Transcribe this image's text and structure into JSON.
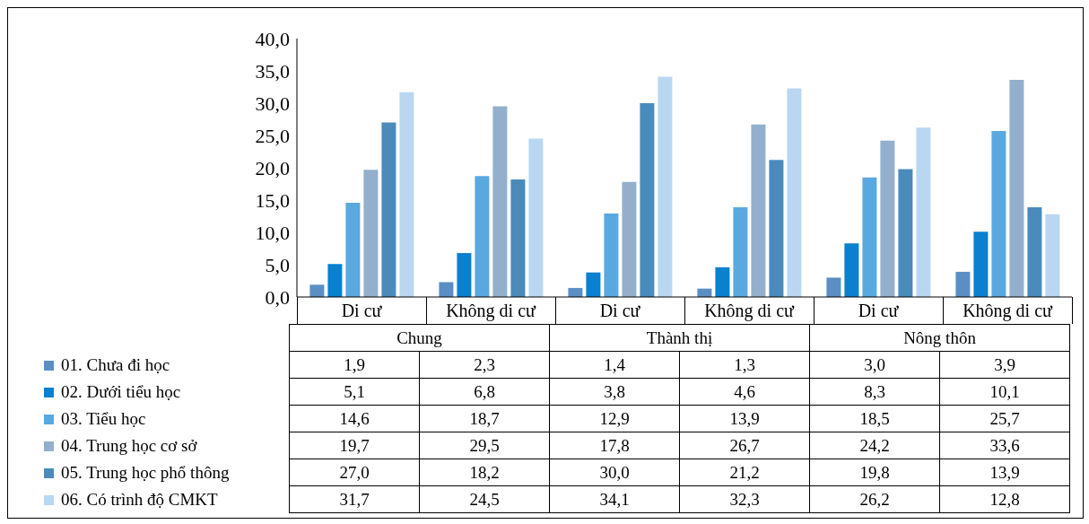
{
  "chart_data": {
    "type": "bar",
    "categories": [
      "Di cư",
      "Không di cư",
      "Di cư",
      "Không di cư",
      "Di cư",
      "Không di cư"
    ],
    "annotations": [
      "Chung",
      "Thành thị",
      "Nông thôn"
    ],
    "series": [
      {
        "name": "01. Chưa đi học",
        "color": "#5b8fc3",
        "values": [
          1.9,
          2.3,
          1.4,
          1.3,
          3.0,
          3.9
        ],
        "value_labels": [
          "1,9",
          "2,3",
          "1,4",
          "1,3",
          "3,0",
          "3,9"
        ]
      },
      {
        "name": "02. Dưới tiểu học",
        "color": "#0a80cf",
        "values": [
          5.1,
          6.8,
          3.8,
          4.6,
          8.3,
          10.1
        ],
        "value_labels": [
          "5,1",
          "6,8",
          "3,8",
          "4,6",
          "8,3",
          "10,1"
        ]
      },
      {
        "name": "03. Tiểu học",
        "color": "#5aa8e0",
        "values": [
          14.6,
          18.7,
          12.9,
          13.9,
          18.5,
          25.7
        ],
        "value_labels": [
          "14,6",
          "18,7",
          "12,9",
          "13,9",
          "18,5",
          "25,7"
        ]
      },
      {
        "name": "04. Trung học cơ sở",
        "color": "#93afcb",
        "values": [
          19.7,
          29.5,
          17.8,
          26.7,
          24.2,
          33.6
        ],
        "value_labels": [
          "19,7",
          "29,5",
          "17,8",
          "26,7",
          "24,2",
          "33,6"
        ]
      },
      {
        "name": "05. Trung học phổ thông",
        "color": "#4a8bbc",
        "values": [
          27.0,
          18.2,
          30.0,
          21.2,
          19.8,
          13.9
        ],
        "value_labels": [
          "27,0",
          "18,2",
          "30,0",
          "21,2",
          "19,8",
          "13,9"
        ]
      },
      {
        "name": "06. Có trình độ CMKT",
        "color": "#bad7f1",
        "values": [
          31.7,
          24.5,
          34.1,
          32.3,
          26.2,
          12.8
        ],
        "value_labels": [
          "31,7",
          "24,5",
          "34,1",
          "32,3",
          "26,2",
          "12,8"
        ]
      }
    ],
    "ylim": [
      0,
      40
    ],
    "yticks": [
      {
        "value": 0,
        "label": "0,0"
      },
      {
        "value": 5,
        "label": "5,0"
      },
      {
        "value": 10,
        "label": "10,0"
      },
      {
        "value": 15,
        "label": "15,0"
      },
      {
        "value": 20,
        "label": "20,0"
      },
      {
        "value": 25,
        "label": "25,0"
      },
      {
        "value": 30,
        "label": "30,0"
      },
      {
        "value": 35,
        "label": "35,0"
      },
      {
        "value": 40,
        "label": "40,0"
      }
    ],
    "grid": false,
    "legend": "bottom left"
  }
}
